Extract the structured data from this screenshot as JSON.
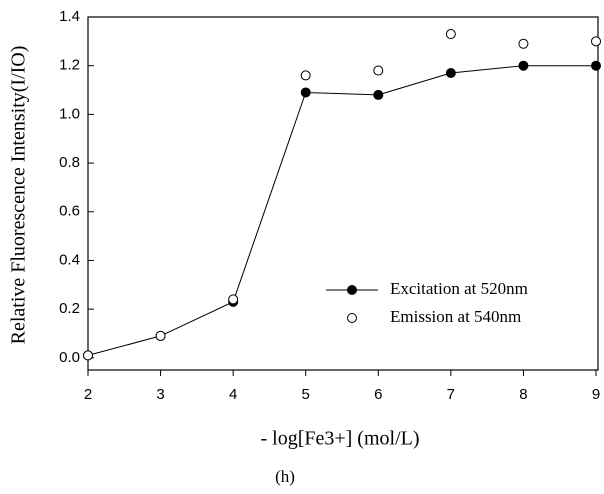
{
  "chart_data": {
    "type": "line",
    "x_label": "- log[Fe3+] (mol/L)",
    "y_label": "Relative Fluorescence Intensity(I/IO)",
    "caption": "(h)",
    "x": [
      2,
      3,
      4,
      5,
      6,
      7,
      8,
      9
    ],
    "series": [
      {
        "name": "Excitation at 520nm",
        "color": "#000000",
        "marker": "filled",
        "line": true,
        "values": [
          0.01,
          0.09,
          0.23,
          1.09,
          1.08,
          1.17,
          1.2,
          1.2
        ]
      },
      {
        "name": "Emission at 540nm",
        "color": "#000000",
        "marker": "open",
        "line": false,
        "values": [
          0.01,
          0.09,
          0.24,
          1.16,
          1.18,
          1.33,
          1.29,
          1.3
        ]
      }
    ],
    "xlim": [
      2,
      9
    ],
    "xticks": [
      2,
      3,
      4,
      5,
      6,
      7,
      8,
      9
    ],
    "ylim": [
      -0.05,
      1.4
    ],
    "yticks": [
      {
        "value": 0,
        "label": "0.0"
      },
      0.2,
      0.4,
      0.6,
      0.8,
      {
        "value": 1,
        "label": "1.0"
      },
      1.2,
      1.4
    ],
    "grid": false,
    "legend": "lower right"
  }
}
